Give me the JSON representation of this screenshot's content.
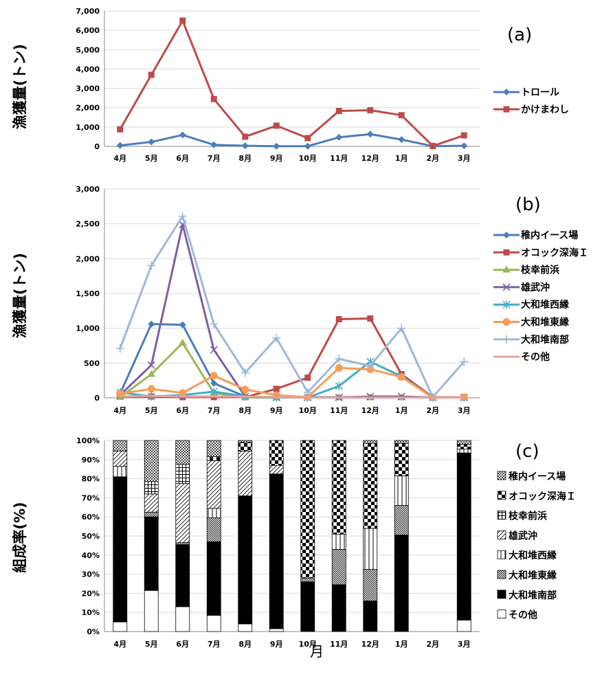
{
  "months": [
    "4月",
    "5月",
    "6月",
    "7月",
    "8月",
    "9月",
    "10月",
    "11月",
    "12月",
    "1月",
    "2月",
    "3月"
  ],
  "xlabel": "月",
  "chart_data": [
    {
      "id": "a",
      "type": "line",
      "panel_label": "(a)",
      "ylabel": "漁獲量(トン)",
      "ylim": [
        0,
        7000
      ],
      "yticks": [
        0,
        1000,
        2000,
        3000,
        4000,
        5000,
        6000,
        7000
      ],
      "ytick_labels": [
        "0",
        "1,000",
        "2,000",
        "3,000",
        "4,000",
        "5,000",
        "6,000",
        "7,000"
      ],
      "legend_position": "right",
      "series": [
        {
          "name": "トロール",
          "color": "#4a7ebb",
          "marker": "diamond",
          "values": [
            50,
            230,
            590,
            80,
            30,
            10,
            10,
            470,
            630,
            350,
            10,
            30
          ]
        },
        {
          "name": "かけまわし",
          "color": "#be4b48",
          "marker": "square",
          "values": [
            880,
            3700,
            6500,
            2450,
            500,
            1070,
            430,
            1830,
            1870,
            1610,
            20,
            570
          ]
        }
      ]
    },
    {
      "id": "b",
      "type": "line",
      "panel_label": "(b)",
      "ylabel": "漁獲量(トン)",
      "ylim": [
        0,
        3000
      ],
      "yticks": [
        0,
        500,
        1000,
        1500,
        2000,
        2500,
        3000
      ],
      "ytick_labels": [
        "0",
        "500",
        "1,000",
        "1,500",
        "2,000",
        "2,500",
        "3,000"
      ],
      "legend_position": "right",
      "series": [
        {
          "name": "稚内イース場",
          "color": "#4a7ebb",
          "marker": "diamond",
          "values": [
            60,
            1060,
            1050,
            210,
            20,
            10,
            10,
            10,
            10,
            10,
            5,
            10
          ]
        },
        {
          "name": "オコック深海Ｉ",
          "color": "#be4b48",
          "marker": "square",
          "values": [
            20,
            20,
            10,
            10,
            10,
            130,
            290,
            1130,
            1140,
            340,
            10,
            10
          ]
        },
        {
          "name": "枝幸前浜",
          "color": "#98b954",
          "marker": "triangle",
          "values": [
            10,
            340,
            790,
            70,
            5,
            5,
            5,
            5,
            5,
            5,
            5,
            5
          ]
        },
        {
          "name": "雄武沖",
          "color": "#7d60a0",
          "marker": "x",
          "values": [
            40,
            470,
            2490,
            690,
            20,
            5,
            5,
            5,
            20,
            20,
            5,
            5
          ]
        },
        {
          "name": "大和堆西縁",
          "color": "#46aac5",
          "marker": "star",
          "values": [
            80,
            20,
            40,
            90,
            20,
            5,
            5,
            170,
            520,
            310,
            5,
            5
          ]
        },
        {
          "name": "大和堆東縁",
          "color": "#f59d56",
          "marker": "circle",
          "values": [
            60,
            130,
            70,
            320,
            120,
            40,
            10,
            430,
            410,
            300,
            5,
            10
          ]
        },
        {
          "name": "大和堆南部",
          "color": "#9db8d9",
          "marker": "plus",
          "values": [
            710,
            1900,
            2610,
            1060,
            360,
            860,
            80,
            560,
            460,
            1000,
            10,
            520
          ]
        },
        {
          "name": "その他",
          "color": "#e6a09e",
          "marker": "none",
          "values": [
            20,
            30,
            20,
            20,
            20,
            10,
            5,
            5,
            5,
            5,
            5,
            5
          ]
        }
      ]
    },
    {
      "id": "c",
      "type": "stacked_bar_percent",
      "panel_label": "(c)",
      "ylabel": "組成率(%)",
      "ylim": [
        0,
        100
      ],
      "yticks": [
        0,
        10,
        20,
        30,
        40,
        50,
        60,
        70,
        80,
        90,
        100
      ],
      "ytick_labels": [
        "0%",
        "10%",
        "20%",
        "30%",
        "40%",
        "50%",
        "60%",
        "70%",
        "80%",
        "90%",
        "100%"
      ],
      "legend_position": "right",
      "series_bottom_to_top": [
        {
          "name": "その他",
          "pattern": "white",
          "values": [
            5,
            21.5,
            13,
            8.5,
            4,
            1.5,
            0,
            0,
            0,
            0,
            0,
            6
          ]
        },
        {
          "name": "大和堆南部",
          "pattern": "black",
          "values": [
            76,
            38.5,
            32.5,
            38.5,
            67,
            81,
            26,
            24.5,
            16,
            50.5,
            0,
            87.5
          ]
        },
        {
          "name": "大和堆東縁",
          "pattern": "diag-dense",
          "values": [
            0,
            2.5,
            1,
            12.5,
            0,
            0,
            2,
            18.5,
            16.5,
            15.5,
            0,
            0
          ]
        },
        {
          "name": "大和堆西縁",
          "pattern": "vert",
          "values": [
            5.5,
            0,
            0,
            5,
            0,
            0,
            0,
            8,
            21.5,
            15.5,
            0,
            2
          ]
        },
        {
          "name": "雄武沖",
          "pattern": "diag-sparse",
          "values": [
            8,
            9.5,
            31,
            25,
            23.5,
            4.5,
            0,
            0,
            0,
            0,
            0,
            0
          ]
        },
        {
          "name": "枝幸前浜",
          "pattern": "grid",
          "values": [
            0,
            6.5,
            10,
            0,
            0,
            0,
            0,
            0,
            0,
            0,
            0,
            0
          ]
        },
        {
          "name": "オコック深海Ｉ",
          "pattern": "checker",
          "values": [
            0,
            0,
            0,
            2,
            4.5,
            13,
            72,
            49,
            44.5,
            17,
            0,
            2.5
          ]
        },
        {
          "name": "稚内イース場",
          "pattern": "dots",
          "values": [
            5.5,
            21.5,
            12.5,
            8.5,
            1,
            0,
            0,
            0,
            1.5,
            1.5,
            0,
            2
          ]
        }
      ],
      "legend_order": [
        "稚内イース場",
        "オコック深海Ｉ",
        "枝幸前浜",
        "雄武沖",
        "大和堆西縁",
        "大和堆東縁",
        "大和堆南部",
        "その他"
      ]
    }
  ]
}
